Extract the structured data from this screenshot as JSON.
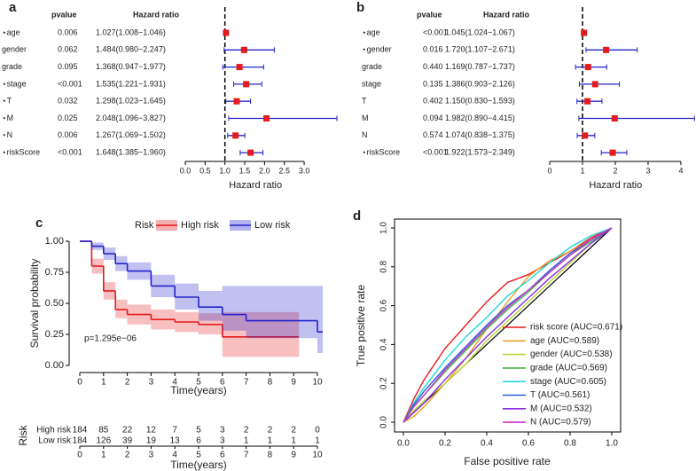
{
  "chart_data": [
    {
      "type": "forest",
      "label": "a",
      "pvalue_header": "pvalue",
      "hr_header": "Hazard ratio",
      "categories": [
        "⋆age",
        "gender",
        "grade",
        "⋆stage",
        "⋆T",
        "⋆M",
        "⋆N",
        "⋆riskScore"
      ],
      "pvalues": [
        "0.006",
        "0.062",
        "0.095",
        "<0.001",
        "0.032",
        "0.025",
        "0.006",
        "<0.001"
      ],
      "values": [
        1.027,
        1.484,
        1.368,
        1.535,
        1.298,
        2.048,
        1.267,
        1.648
      ],
      "lower": [
        1.008,
        0.98,
        0.947,
        1.221,
        1.023,
        1.096,
        1.069,
        1.385
      ],
      "upper": [
        1.046,
        2.247,
        1.977,
        1.931,
        1.645,
        3.827,
        1.502,
        1.96
      ],
      "value_labels": [
        "1.027(1.008−1.046)",
        "1.484(0.980−2.247)",
        "1.368(0.947−1.977)",
        "1.535(1.221−1.931)",
        "1.298(1.023−1.645)",
        "2.048(1.096−3.827)",
        "1.267(1.069−1.502)",
        "1.648(1.385−1.960)"
      ],
      "color": "#e41a1c",
      "ci_color": "#2424c8",
      "ref_line": 1,
      "xlim": [
        0,
        3.9
      ],
      "xticks": [
        {
          "value": 0,
          "label": "0.0"
        },
        0.5,
        {
          "value": 1,
          "label": "1.0"
        },
        1.5,
        {
          "value": 2,
          "label": "2.0"
        },
        2.5,
        {
          "value": 3,
          "label": "3.0"
        }
      ],
      "xlabel": "Hazard ratio"
    },
    {
      "type": "forest",
      "label": "b",
      "pvalue_header": "pvalue",
      "hr_header": "Hazard ratio",
      "categories": [
        "⋆age",
        "⋆gender",
        "grade",
        "stage",
        "T",
        "M",
        "N",
        "⋆riskScore"
      ],
      "pvalues": [
        "<0.001",
        "0.016",
        "0.440",
        "0.135",
        "0.402",
        "0.094",
        "0.574",
        "<0.001"
      ],
      "values": [
        1.045,
        1.72,
        1.169,
        1.386,
        1.15,
        1.982,
        1.074,
        1.922
      ],
      "lower": [
        1.024,
        1.107,
        0.787,
        0.903,
        0.83,
        0.89,
        0.838,
        1.573
      ],
      "upper": [
        1.067,
        2.671,
        1.737,
        2.126,
        1.593,
        4.415,
        1.375,
        2.349
      ],
      "value_labels": [
        "1.045(1.024−1.067)",
        "1.720(1.107−2.671)",
        "1.169(0.787−1.737)",
        "1.386(0.903−2.126)",
        "1.150(0.830−1.593)",
        "1.982(0.890−4.415)",
        "1.074(0.838−1.375)",
        "1.922(1.573−2.349)"
      ],
      "color": "#e41a1c",
      "ci_color": "#2424c8",
      "ref_line": 1,
      "xlim": [
        0,
        4.45
      ],
      "xticks": [
        0,
        1,
        2,
        3,
        4
      ],
      "xlabel": "Hazard ratio"
    },
    {
      "type": "km",
      "label": "c",
      "legend_title": "Risk",
      "ylabel": "Survival probability",
      "xlabel": "Time(years)",
      "annotation": "p=1.295e−06",
      "x": [
        0,
        0.5,
        1,
        1.5,
        2,
        3,
        4,
        5,
        6,
        7,
        8,
        9,
        10
      ],
      "series": [
        {
          "name": "High risk",
          "color": "#e41a1c",
          "values": [
            1,
            0.8,
            0.6,
            0.45,
            0.41,
            0.37,
            0.35,
            0.33,
            0.23,
            0.23,
            0.23,
            0.23,
            null
          ],
          "lower": [
            1,
            0.74,
            0.53,
            0.38,
            0.33,
            0.29,
            0.27,
            0.25,
            0.07,
            0.07,
            0.07,
            0.07,
            null
          ],
          "upper": [
            1,
            0.86,
            0.67,
            0.53,
            0.49,
            0.45,
            0.43,
            0.42,
            0.43,
            0.43,
            0.43,
            0.43,
            null
          ]
        },
        {
          "name": "Low risk",
          "color": "#2222cc",
          "values": [
            1,
            0.96,
            0.9,
            0.82,
            0.76,
            0.64,
            0.55,
            0.47,
            0.41,
            0.36,
            0.36,
            0.36,
            0.27
          ],
          "lower": [
            1,
            0.93,
            0.85,
            0.76,
            0.69,
            0.55,
            0.45,
            0.36,
            0.28,
            0.22,
            0.22,
            0.22,
            0.1
          ],
          "upper": [
            1,
            0.99,
            0.95,
            0.88,
            0.83,
            0.73,
            0.66,
            0.6,
            0.64,
            0.64,
            0.64,
            0.64,
            0.64
          ]
        }
      ],
      "xlim": [
        0,
        10
      ],
      "xticks": [
        0,
        1,
        2,
        3,
        4,
        5,
        6,
        7,
        8,
        9,
        10
      ],
      "ylim": [
        0,
        1
      ],
      "yticks": [
        {
          "value": 0,
          "label": "0.00"
        },
        0.25,
        {
          "value": 0.5,
          "label": "0.50"
        },
        0.75,
        {
          "value": 1,
          "label": "1.00"
        }
      ],
      "risk_table": {
        "title": "Risk",
        "xlabel": "Time(years)",
        "x": [
          0,
          1,
          2,
          3,
          4,
          5,
          6,
          7,
          8,
          9,
          10
        ],
        "rows": [
          {
            "name": "High risk",
            "color": "#e41a1c",
            "values": [
              184,
              85,
              22,
              12,
              7,
              5,
              3,
              2,
              2,
              2,
              0
            ]
          },
          {
            "name": "Low risk",
            "color": "#2222cc",
            "values": [
              184,
              126,
              39,
              19,
              13,
              6,
              3,
              1,
              1,
              1,
              1
            ]
          }
        ]
      }
    },
    {
      "type": "roc",
      "label": "d",
      "xlabel": "False positive rate",
      "ylabel": "True positive rate",
      "x": [
        0,
        0.05,
        0.1,
        0.2,
        0.3,
        0.4,
        0.5,
        0.6,
        0.7,
        0.8,
        0.9,
        1
      ],
      "series": [
        {
          "name": "risk score (AUC=0.671)",
          "color": "#e41a1c",
          "values": [
            0,
            0.12,
            0.22,
            0.38,
            0.5,
            0.62,
            0.72,
            0.76,
            0.82,
            0.88,
            0.95,
            1
          ]
        },
        {
          "name": "age (AUC=0.589)",
          "color": "#f0a020",
          "values": [
            0,
            0.03,
            0.08,
            0.2,
            0.33,
            0.48,
            0.62,
            0.75,
            0.83,
            0.88,
            0.94,
            1
          ]
        },
        {
          "name": "gender (AUC=0.538)",
          "color": "#b5d930",
          "values": [
            0,
            0.06,
            0.11,
            0.2,
            0.3,
            0.42,
            0.52,
            0.62,
            0.72,
            0.82,
            0.92,
            1
          ]
        },
        {
          "name": "grade (AUC=0.569)",
          "color": "#3cb84a",
          "values": [
            0,
            0.08,
            0.14,
            0.26,
            0.37,
            0.48,
            0.58,
            0.67,
            0.77,
            0.86,
            0.93,
            1
          ]
        },
        {
          "name": "stage (AUC=0.605)",
          "color": "#1ed6e0",
          "values": [
            0,
            0.1,
            0.18,
            0.32,
            0.44,
            0.54,
            0.65,
            0.73,
            0.82,
            0.9,
            0.96,
            1
          ]
        },
        {
          "name": "T (AUC=0.561)",
          "color": "#2b5fd9",
          "values": [
            0,
            0.09,
            0.16,
            0.28,
            0.39,
            0.5,
            0.6,
            0.68,
            0.78,
            0.87,
            0.94,
            1
          ]
        },
        {
          "name": "M (AUC=0.532)",
          "color": "#8a2be2",
          "values": [
            0,
            0.05,
            0.1,
            0.22,
            0.33,
            0.44,
            0.54,
            0.64,
            0.74,
            0.83,
            0.92,
            1
          ]
        },
        {
          "name": "N (AUC=0.579)",
          "color": "#d030c8",
          "values": [
            0,
            0.08,
            0.14,
            0.27,
            0.38,
            0.49,
            0.59,
            0.68,
            0.77,
            0.86,
            0.94,
            1
          ]
        }
      ],
      "xlim": [
        0,
        1
      ],
      "ylim": [
        0,
        1
      ],
      "xticks": [
        {
          "value": 0,
          "label": "0.0"
        },
        0.2,
        0.4,
        0.6,
        0.8,
        {
          "value": 1,
          "label": "1.0"
        }
      ],
      "yticks": [
        {
          "value": 0,
          "label": "0.0"
        },
        0.2,
        0.4,
        0.6,
        0.8,
        {
          "value": 1,
          "label": "1.0"
        }
      ]
    }
  ]
}
